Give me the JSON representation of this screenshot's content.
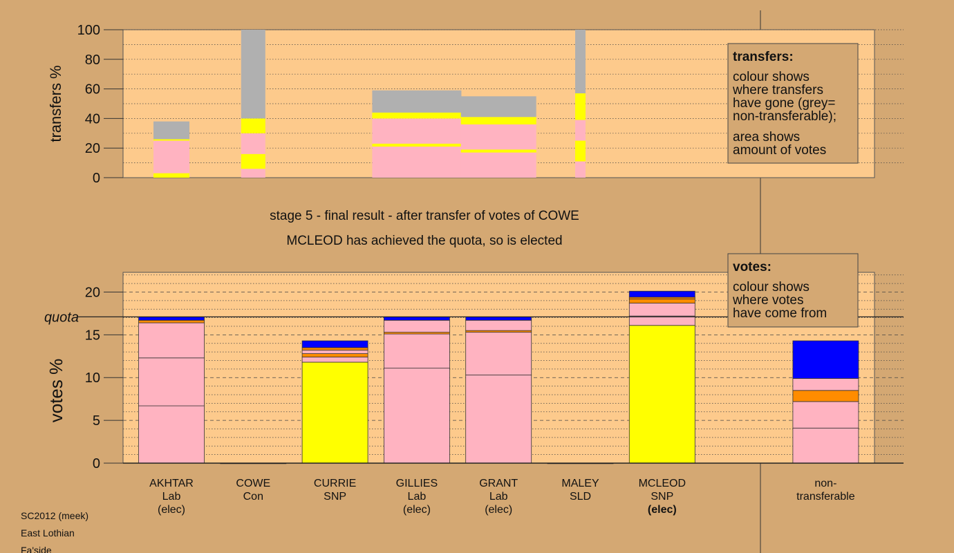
{
  "chart_data": [
    {
      "type": "stacked-bar",
      "ylabel": "transfers %",
      "ylim": [
        0,
        100
      ],
      "yticks": [
        0,
        20,
        40,
        60,
        80,
        100
      ],
      "ygrid": [
        10,
        20,
        30,
        40,
        50,
        60,
        70,
        80,
        90,
        100
      ],
      "stacks": [
        {
          "weight": 52,
          "segments": [
            {
              "color": "#ffff00",
              "value": 3
            },
            {
              "color": "#ffb3c1",
              "value": 22
            },
            {
              "color": "#ffff00",
              "value": 1
            },
            {
              "color": "#b0b0b0",
              "value": 12
            }
          ]
        },
        {
          "weight": 35,
          "segments": [
            {
              "color": "#ffb3c1",
              "value": 6
            },
            {
              "color": "#ffff00",
              "value": 10
            },
            {
              "color": "#ffb3c1",
              "value": 14
            },
            {
              "color": "#ffff00",
              "value": 10
            },
            {
              "color": "#b0b0b0",
              "value": 60
            }
          ]
        },
        null,
        {
          "weight": 129,
          "segments": [
            {
              "color": "#ffb3c1",
              "value": 21
            },
            {
              "color": "#ffff00",
              "value": 2
            },
            {
              "color": "#ffb3c1",
              "value": 17
            },
            {
              "color": "#ffff00",
              "value": 4
            },
            {
              "color": "#b0b0b0",
              "value": 15
            }
          ]
        },
        {
          "weight": 109,
          "segments": [
            {
              "color": "#ffb3c1",
              "value": 17
            },
            {
              "color": "#ffff00",
              "value": 2
            },
            {
              "color": "#ffb3c1",
              "value": 17
            },
            {
              "color": "#ffff00",
              "value": 5
            },
            {
              "color": "#b0b0b0",
              "value": 14
            }
          ]
        },
        {
          "weight": 15,
          "segments": [
            {
              "color": "#ffb3c1",
              "value": 11
            },
            {
              "color": "#ffff00",
              "value": 14
            },
            {
              "color": "#ffb3c1",
              "value": 14
            },
            {
              "color": "#ffff00",
              "value": 18
            },
            {
              "color": "#b0b0b0",
              "value": 43
            }
          ]
        },
        null,
        null,
        null
      ],
      "legend": {
        "title": "transfers:",
        "paragraphs": [
          [
            "colour shows",
            "where transfers",
            "have gone (grey=",
            "non-transferable);"
          ],
          [
            "area shows",
            "amount of votes"
          ]
        ]
      }
    },
    {
      "type": "stacked-bar",
      "title": "stage 5 - final result - after transfer of votes of COWE",
      "subtitle": "MCLEOD has achieved the quota, so is elected",
      "ylabel": "votes %",
      "ylim": [
        0,
        22.3
      ],
      "yticks": [
        0,
        5,
        10,
        15,
        20
      ],
      "ygrid": [
        1,
        2,
        3,
        4,
        6,
        7,
        8,
        9,
        11,
        12,
        13,
        14,
        16,
        17,
        18,
        19,
        21,
        22
      ],
      "quota": 17.1,
      "quota_label": "quota",
      "categories": [
        {
          "lines": [
            "AKHTAR",
            "Lab",
            "(elec)"
          ]
        },
        {
          "lines": [
            "COWE",
            "Con"
          ]
        },
        {
          "lines": [
            "CURRIE",
            "SNP"
          ]
        },
        {
          "lines": [
            "GILLIES",
            "Lab",
            "(elec)"
          ]
        },
        {
          "lines": [
            "GRANT",
            "Lab",
            "(elec)"
          ]
        },
        {
          "lines": [
            "MALEY",
            "SLD"
          ]
        },
        {
          "lines": [
            "MCLEOD",
            "SNP",
            "(elec)"
          ],
          "elected_this_stage": true
        },
        null,
        {
          "lines": [
            "non-",
            "transferable"
          ]
        }
      ],
      "stacks": [
        {
          "segments": [
            {
              "color": "#ffb3c1",
              "value": 6.7
            },
            {
              "color": "#ffb3c1",
              "value": 5.6
            },
            {
              "color": "#ffb3c1",
              "value": 4.1
            },
            {
              "color": "#ff8c00",
              "value": 0.3
            },
            {
              "color": "#0000ff",
              "value": 0.4
            }
          ]
        },
        {
          "segments": [
            {
              "color": "#ffb3c1",
              "value": 0
            }
          ]
        },
        {
          "segments": [
            {
              "color": "#ffff00",
              "value": 11.8
            },
            {
              "color": "#ffb3c1",
              "value": 0.6
            },
            {
              "color": "#ff8c00",
              "value": 0.4
            },
            {
              "color": "#ffb3c1",
              "value": 0.4
            },
            {
              "color": "#ff8c00",
              "value": 0.3
            },
            {
              "color": "#0000ff",
              "value": 0.8
            }
          ]
        },
        {
          "segments": [
            {
              "color": "#ffb3c1",
              "value": 11.1
            },
            {
              "color": "#ffb3c1",
              "value": 4.0
            },
            {
              "color": "#ff8c00",
              "value": 0.2
            },
            {
              "color": "#ffb3c1",
              "value": 1.4
            },
            {
              "color": "#0000ff",
              "value": 0.4
            }
          ]
        },
        {
          "segments": [
            {
              "color": "#ffb3c1",
              "value": 10.3
            },
            {
              "color": "#ffb3c1",
              "value": 5.0
            },
            {
              "color": "#ff8c00",
              "value": 0.2
            },
            {
              "color": "#ffb3c1",
              "value": 1.2
            },
            {
              "color": "#0000ff",
              "value": 0.4
            }
          ]
        },
        {
          "segments": [
            {
              "color": "#ffb3c1",
              "value": 0
            }
          ]
        },
        {
          "segments": [
            {
              "color": "#ffff00",
              "value": 16.1
            },
            {
              "color": "#ffb3c1",
              "value": 1.1
            },
            {
              "color": "#ffb3c1",
              "value": 1.5
            },
            {
              "color": "#ff8c00",
              "value": 0.5
            },
            {
              "color": "#ff8c00",
              "value": 0.2
            },
            {
              "color": "#0000ff",
              "value": 0.7
            }
          ]
        },
        null,
        {
          "segments": [
            {
              "color": "#ffb3c1",
              "value": 4.1
            },
            {
              "color": "#ffb3c1",
              "value": 3.1
            },
            {
              "color": "#ff8c00",
              "value": 1.3
            },
            {
              "color": "#ffb3c1",
              "value": 1.4
            },
            {
              "color": "#0000ff",
              "value": 4.4
            }
          ]
        }
      ],
      "legend": {
        "title": "votes:",
        "paragraphs": [
          [
            "colour shows",
            "where votes",
            "have come from"
          ]
        ]
      }
    }
  ],
  "footer": [
    "SC2012 (meek)",
    "East Lothian",
    "Fa'side"
  ]
}
